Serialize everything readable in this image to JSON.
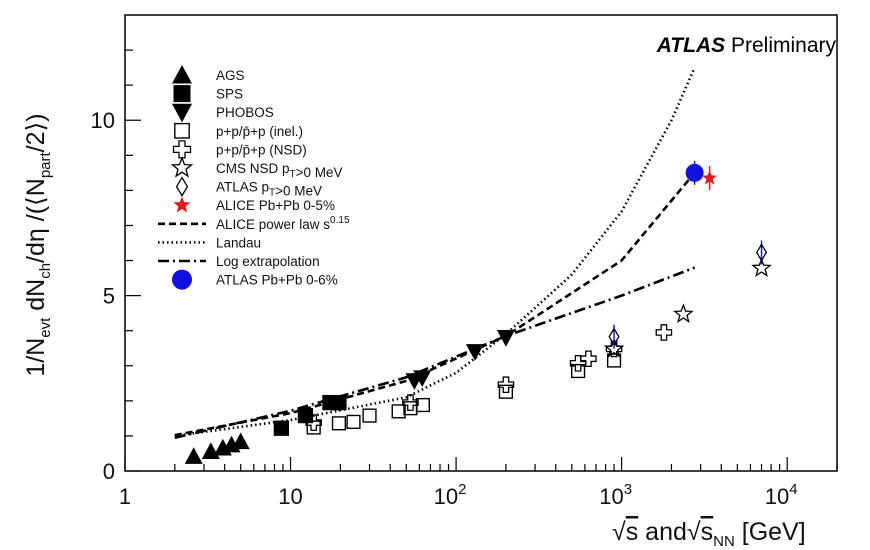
{
  "chart_data": {
    "type": "scatter",
    "x_scale": "log",
    "xlim": [
      1,
      20000
    ],
    "ylim": [
      0,
      13
    ],
    "xlabel": "√s and√s_NN [GeV]",
    "ylabel": "1/N_evt dN_ch/dη /(⟨N_part/2⟩)",
    "x_ticks": [
      "1",
      "10",
      "10^2",
      "10^3",
      "10^4"
    ],
    "y_ticks": [
      "0",
      "5",
      "10"
    ],
    "grid": false,
    "legend_position": "top-left",
    "atlas_label": {
      "bold": "ATLAS",
      "normal": "Preliminary"
    },
    "series": [
      {
        "name": "AGS",
        "marker": "triangle-up",
        "color": "#000000",
        "points": [
          [
            2.6,
            0.42
          ],
          [
            3.3,
            0.56
          ],
          [
            3.9,
            0.66
          ],
          [
            4.4,
            0.75
          ],
          [
            5.0,
            0.84
          ]
        ]
      },
      {
        "name": "SPS",
        "marker": "square",
        "color": "#000000",
        "points": [
          [
            8.8,
            1.22
          ],
          [
            12.3,
            1.58
          ],
          [
            17.3,
            1.95
          ],
          [
            19.6,
            1.95
          ]
        ]
      },
      {
        "name": "PHOBOS",
        "marker": "triangle-down",
        "color": "#000000",
        "points": [
          [
            19.6,
            1.95
          ],
          [
            56,
            2.57
          ],
          [
            62.4,
            2.65
          ],
          [
            130,
            3.4
          ],
          [
            200,
            3.8
          ]
        ]
      },
      {
        "name": "p+p/p̄+p (inel.)",
        "marker": "open-square",
        "color": "#000000",
        "points": [
          [
            13.8,
            1.24
          ],
          [
            19.6,
            1.36
          ],
          [
            24,
            1.4
          ],
          [
            30,
            1.58
          ],
          [
            45,
            1.7
          ],
          [
            53,
            1.79
          ],
          [
            63,
            1.88
          ],
          [
            200,
            2.26
          ],
          [
            546,
            2.85
          ],
          [
            900,
            3.15
          ]
        ]
      },
      {
        "name": "p+p/p̄+p (NSD)",
        "marker": "open-cross",
        "color": "#000000",
        "points": [
          [
            13.8,
            1.38
          ],
          [
            53,
            1.95
          ],
          [
            200,
            2.46
          ],
          [
            546,
            3.07
          ],
          [
            630,
            3.2
          ],
          [
            900,
            3.48
          ],
          [
            1800,
            3.95
          ]
        ]
      },
      {
        "name": "CMS NSD p_T>0 MeV",
        "marker": "open-star",
        "color": "#000000",
        "points": [
          [
            900,
            3.48
          ],
          [
            2360,
            4.47
          ],
          [
            7000,
            5.78
          ]
        ]
      },
      {
        "name": "ATLAS p_T>0 MeV",
        "marker": "open-diamond",
        "color": "#000000",
        "points": [
          [
            900,
            3.83
          ],
          [
            7000,
            6.23
          ]
        ]
      },
      {
        "name": "ALICE Pb+Pb 0-5%",
        "marker": "star",
        "color": "#e31a1c",
        "points": [
          [
            3400,
            8.35
          ]
        ]
      },
      {
        "name": "ALICE power law s^0.15",
        "line": "dashed",
        "color": "#000000"
      },
      {
        "name": "Landau",
        "line": "dotted",
        "color": "#000000"
      },
      {
        "name": "Log extrapolation",
        "line": "dashdot",
        "color": "#000000"
      },
      {
        "name": "ATLAS Pb+Pb 0-6%",
        "marker": "circle",
        "color": "#1010e0",
        "points": [
          [
            2760,
            8.5
          ]
        ]
      }
    ],
    "curves": [
      {
        "name": "ALICE power law s^0.15",
        "points": [
          [
            2,
            1.02
          ],
          [
            10,
            1.65
          ],
          [
            50,
            2.57
          ],
          [
            200,
            3.85
          ],
          [
            1000,
            6.0
          ],
          [
            2760,
            8.5
          ]
        ]
      },
      {
        "name": "Landau",
        "points": [
          [
            2,
            1.0
          ],
          [
            10,
            1.45
          ],
          [
            50,
            2.1
          ],
          [
            100,
            2.8
          ],
          [
            200,
            3.9
          ],
          [
            500,
            5.6
          ],
          [
            1000,
            7.4
          ],
          [
            2000,
            10.0
          ],
          [
            2760,
            11.5
          ]
        ]
      },
      {
        "name": "Log extrapolation",
        "points": [
          [
            2,
            0.95
          ],
          [
            10,
            1.72
          ],
          [
            50,
            2.67
          ],
          [
            200,
            3.85
          ],
          [
            1000,
            5.0
          ],
          [
            2760,
            5.8
          ]
        ]
      }
    ],
    "legend": [
      {
        "label": "AGS"
      },
      {
        "label": "SPS"
      },
      {
        "label": "PHOBOS"
      },
      {
        "label": "p+p/p̄+p (inel.)"
      },
      {
        "label": "p+p/p̄+p (NSD)"
      },
      {
        "label": "CMS NSD p_T>0 MeV"
      },
      {
        "label": "ATLAS p_T>0 MeV"
      },
      {
        "label": "ALICE Pb+Pb 0-5%"
      },
      {
        "label": "ALICE power law s^0.15"
      },
      {
        "label": "Landau"
      },
      {
        "label": "Log extrapolation"
      },
      {
        "label": "ATLAS Pb+Pb 0-6%"
      }
    ]
  }
}
